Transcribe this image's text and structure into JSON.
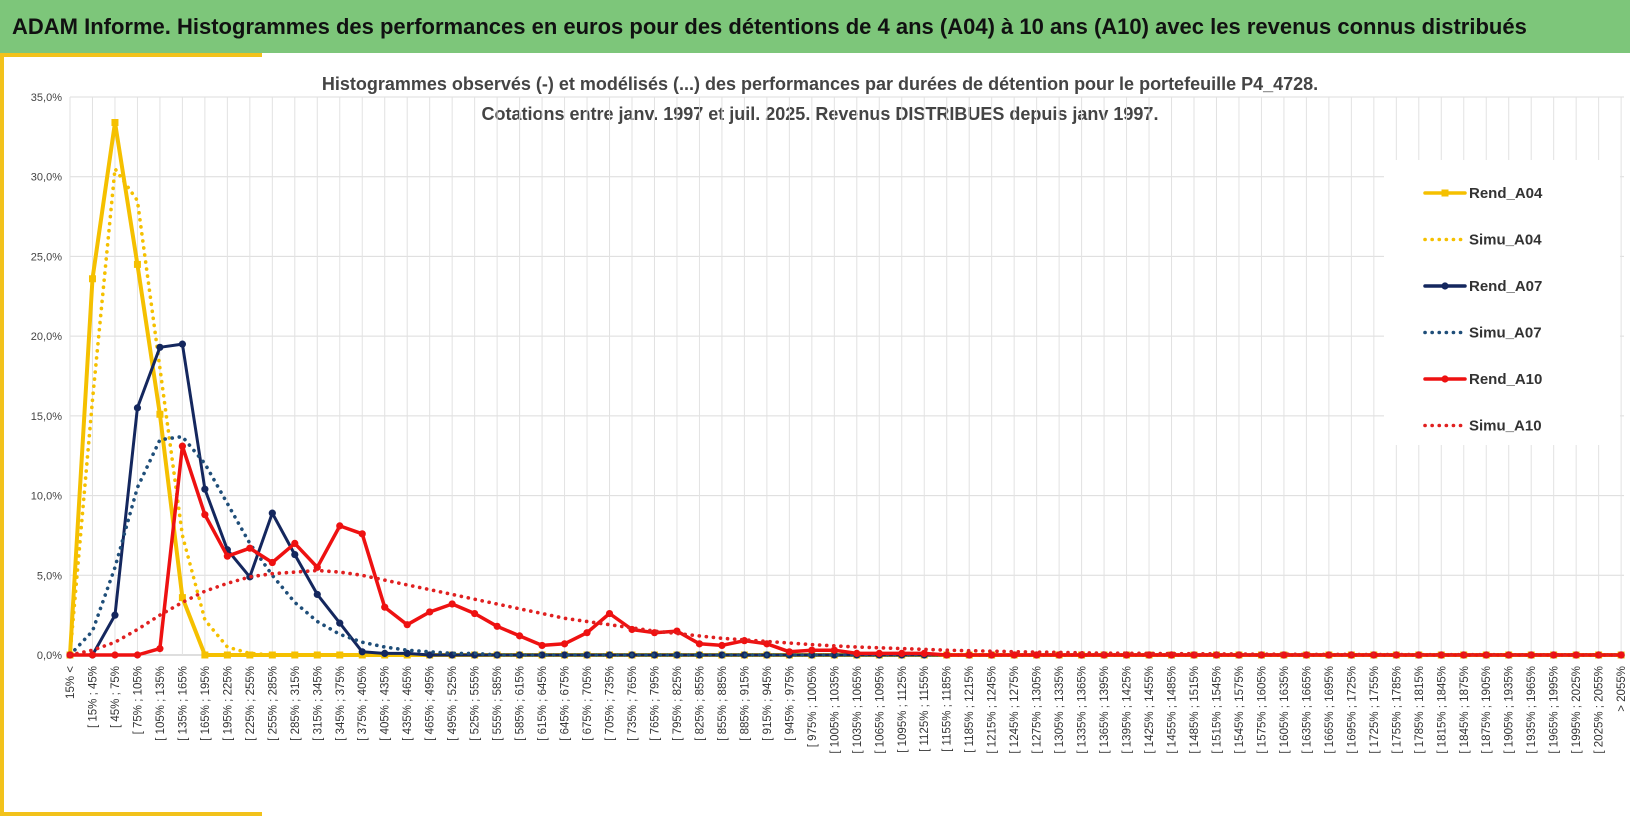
{
  "header": {
    "title": "ADAM Informe. Histogrammes des performances en euros pour des détentions de 4 ans (A04) à 10 ans (A10) avec les revenus connus distribués"
  },
  "chart_data": {
    "type": "line",
    "title": "Histogrammes observés (-) et modélisés (...) des performances par durées de détention pour le portefeuille P4_4728.",
    "subtitle": "Cotations entre janv. 1997 et juil. 2025. Revenus DISTRIBUES depuis janv 1997.",
    "xlabel": "",
    "ylabel": "",
    "ylim": [
      0,
      35
    ],
    "yticks": [
      "0,0%",
      "5,0%",
      "10,0%",
      "15,0%",
      "20,0%",
      "25,0%",
      "30,0%",
      "35,0%"
    ],
    "grid": true,
    "legend_position": "right",
    "categories": [
      "15% <",
      "[ 15% ; 45%",
      "[ 45% ; 75%",
      "[ 75% ; 105%",
      "[ 105% ; 135%",
      "[ 135% ; 165%",
      "[ 165% ; 195%",
      "[ 195% ; 225%",
      "[ 225% ; 255%",
      "[ 255% ; 285%",
      "[ 285% ; 315%",
      "[ 315% ; 345%",
      "[ 345% ; 375%",
      "[ 375% ; 405%",
      "[ 405% ; 435%",
      "[ 435% ; 465%",
      "[ 465% ; 495%",
      "[ 495% ; 525%",
      "[ 525% ; 555%",
      "[ 555% ; 585%",
      "[ 585% ; 615%",
      "[ 615% ; 645%",
      "[ 645% ; 675%",
      "[ 675% ; 705%",
      "[ 705% ; 735%",
      "[ 735% ; 765%",
      "[ 765% ; 795%",
      "[ 795% ; 825%",
      "[ 825% ; 855%",
      "[ 855% ; 885%",
      "[ 885% ; 915%",
      "[ 915% ; 945%",
      "[ 945% ; 975%",
      "[ 975% ; 1005%",
      "[ 1005% ; 1035%",
      "[ 1035% ; 1065%",
      "[ 1065% ; 1095%",
      "[ 1095% ; 1125%",
      "[ 1125% ; 1155%",
      "[ 1155% ; 1185%",
      "[ 1185% ; 1215%",
      "[ 1215% ; 1245%",
      "[ 1245% ; 1275%",
      "[ 1275% ; 1305%",
      "[ 1305% ; 1335%",
      "[ 1335% ; 1365%",
      "[ 1365% ; 1395%",
      "[ 1395% ; 1425%",
      "[ 1425% ; 1455%",
      "[ 1455% ; 1485%",
      "[ 1485% ; 1515%",
      "[ 1515% ; 1545%",
      "[ 1545% ; 1575%",
      "[ 1575% ; 1605%",
      "[ 1605% ; 1635%",
      "[ 1635% ; 1665%",
      "[ 1665% ; 1695%",
      "[ 1695% ; 1725%",
      "[ 1725% ; 1755%",
      "[ 1755% ; 1785%",
      "[ 1785% ; 1815%",
      "[ 1815% ; 1845%",
      "[ 1845% ; 1875%",
      "[ 1875% ; 1905%",
      "[ 1905% ; 1935%",
      "[ 1935% ; 1965%",
      "[ 1965% ; 1995%",
      "[ 1995% ; 2025%",
      "[ 2025% ; 2055%",
      "> 2055%"
    ],
    "series": [
      {
        "name": "Rend_A04",
        "style": "solid",
        "marker": "square",
        "color": "#f5c000",
        "values": [
          0,
          23.6,
          33.4,
          24.5,
          15.1,
          3.6,
          0,
          0,
          0,
          0,
          0,
          0,
          0,
          0,
          0,
          0,
          0,
          0,
          0,
          0,
          0,
          0,
          0,
          0,
          0,
          0,
          0,
          0,
          0,
          0,
          0,
          0,
          0,
          0,
          0,
          0,
          0,
          0,
          0,
          0,
          0,
          0,
          0,
          0,
          0,
          0,
          0,
          0,
          0,
          0,
          0,
          0,
          0,
          0,
          0,
          0,
          0,
          0,
          0,
          0,
          0,
          0,
          0,
          0,
          0,
          0,
          0,
          0,
          0,
          0
        ]
      },
      {
        "name": "Simu_A04",
        "style": "dotted",
        "marker": "none",
        "color": "#f5c000",
        "values": [
          0,
          16,
          30.5,
          28.5,
          18,
          7.5,
          2.2,
          0.5,
          0.1,
          0,
          0,
          0,
          0,
          0,
          0,
          0,
          0,
          0,
          0,
          0,
          0,
          0,
          0,
          0,
          0,
          0,
          0,
          0,
          0,
          0,
          0,
          0,
          0,
          0,
          0,
          0,
          0,
          0,
          0,
          0,
          0,
          0,
          0,
          0,
          0,
          0,
          0,
          0,
          0,
          0,
          0,
          0,
          0,
          0,
          0,
          0,
          0,
          0,
          0,
          0,
          0,
          0,
          0,
          0,
          0,
          0,
          0,
          0,
          0,
          0
        ]
      },
      {
        "name": "Rend_A07",
        "style": "solid",
        "marker": "circle",
        "color": "#14275e",
        "values": [
          0,
          0,
          2.5,
          15.5,
          19.3,
          19.5,
          10.4,
          6.6,
          4.9,
          8.9,
          6.3,
          3.8,
          2,
          0.2,
          0.1,
          0.1,
          0,
          0,
          0,
          0,
          0,
          0,
          0,
          0,
          0,
          0,
          0,
          0,
          0,
          0,
          0,
          0,
          0,
          0,
          0,
          0,
          0,
          0,
          0,
          0,
          0,
          0,
          0,
          0,
          0,
          0,
          0,
          0,
          0,
          0,
          0,
          0,
          0,
          0,
          0,
          0,
          0,
          0,
          0,
          0,
          0,
          0,
          0,
          0,
          0,
          0,
          0,
          0,
          0,
          0
        ]
      },
      {
        "name": "Simu_A07",
        "style": "dotted",
        "marker": "none",
        "color": "#1f4e79",
        "values": [
          0,
          1.5,
          5.5,
          10.5,
          13.5,
          13.7,
          12,
          9.5,
          7,
          5,
          3.3,
          2.1,
          1.3,
          0.8,
          0.5,
          0.3,
          0.2,
          0.1,
          0.1,
          0,
          0,
          0,
          0,
          0,
          0,
          0,
          0,
          0,
          0,
          0,
          0,
          0,
          0,
          0,
          0,
          0,
          0,
          0,
          0,
          0,
          0,
          0,
          0,
          0,
          0,
          0,
          0,
          0,
          0,
          0,
          0,
          0,
          0,
          0,
          0,
          0,
          0,
          0,
          0,
          0,
          0,
          0,
          0,
          0,
          0,
          0,
          0,
          0,
          0,
          0
        ]
      },
      {
        "name": "Rend_A10",
        "style": "solid",
        "marker": "circle",
        "color": "#ee1111",
        "values": [
          0,
          0,
          0,
          0,
          0.4,
          13.1,
          8.8,
          6.2,
          6.7,
          5.8,
          7,
          5.5,
          8.1,
          7.6,
          3,
          1.9,
          2.7,
          3.2,
          2.6,
          1.8,
          1.2,
          0.6,
          0.7,
          1.4,
          2.6,
          1.6,
          1.4,
          1.5,
          0.7,
          0.6,
          0.9,
          0.7,
          0.2,
          0.3,
          0.3,
          0.1,
          0.1,
          0.1,
          0.1,
          0,
          0,
          0,
          0,
          0,
          0,
          0,
          0,
          0,
          0,
          0,
          0,
          0,
          0,
          0,
          0,
          0,
          0,
          0,
          0,
          0,
          0,
          0,
          0,
          0,
          0,
          0,
          0,
          0,
          0,
          0
        ]
      },
      {
        "name": "Simu_A10",
        "style": "dotted",
        "marker": "none",
        "color": "#e02020",
        "values": [
          0,
          0.3,
          0.8,
          1.6,
          2.5,
          3.3,
          4.0,
          4.5,
          4.9,
          5.1,
          5.2,
          5.3,
          5.2,
          5.0,
          4.7,
          4.4,
          4.1,
          3.8,
          3.5,
          3.2,
          2.9,
          2.6,
          2.3,
          2.1,
          1.9,
          1.7,
          1.5,
          1.35,
          1.2,
          1.05,
          0.95,
          0.85,
          0.75,
          0.65,
          0.58,
          0.5,
          0.45,
          0.4,
          0.35,
          0.3,
          0.27,
          0.24,
          0.21,
          0.18,
          0.16,
          0.14,
          0.12,
          0.11,
          0.1,
          0.09,
          0.08,
          0.07,
          0.06,
          0.05,
          0.05,
          0.04,
          0.04,
          0.03,
          0.03,
          0.03,
          0.02,
          0.02,
          0.02,
          0.02,
          0.01,
          0.01,
          0.01,
          0.01,
          0.01,
          0
        ]
      }
    ]
  }
}
